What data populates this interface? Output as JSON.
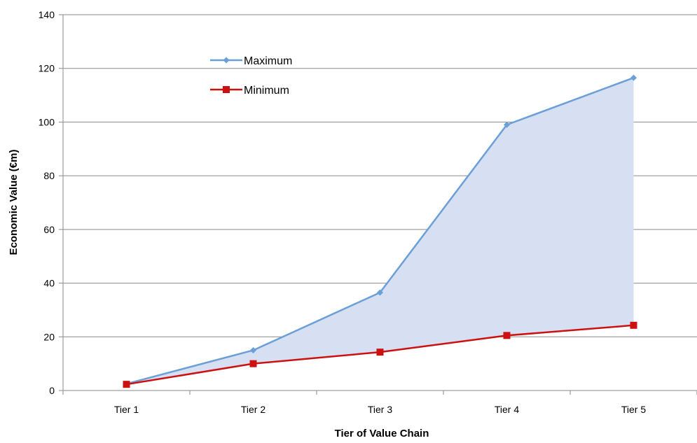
{
  "chart_data": {
    "type": "line",
    "title": "",
    "xlabel": "Tier of Value Chain",
    "ylabel": "Economic Value (€m)",
    "categories": [
      "Tier 1",
      "Tier 2",
      "Tier 3",
      "Tier 4",
      "Tier 5"
    ],
    "ylim": [
      0,
      140
    ],
    "yticks": [
      0,
      20,
      40,
      60,
      80,
      100,
      120,
      140
    ],
    "grid": true,
    "legend_position": "top-left",
    "shaded_band": {
      "between": [
        "Maximum",
        "Minimum"
      ],
      "color": "#d6e0f2"
    },
    "series": [
      {
        "name": "Maximum",
        "values": [
          2.5,
          15,
          36.5,
          99,
          116.5
        ],
        "color": "#6a9fd8",
        "marker": "diamond"
      },
      {
        "name": "Minimum",
        "values": [
          2.3,
          10,
          14.3,
          20.5,
          24.3
        ],
        "color": "#cc1111",
        "marker": "square"
      }
    ]
  },
  "colors": {
    "axis": "#8a8a8a",
    "grid": "#8a8a8a",
    "text": "#000000"
  }
}
